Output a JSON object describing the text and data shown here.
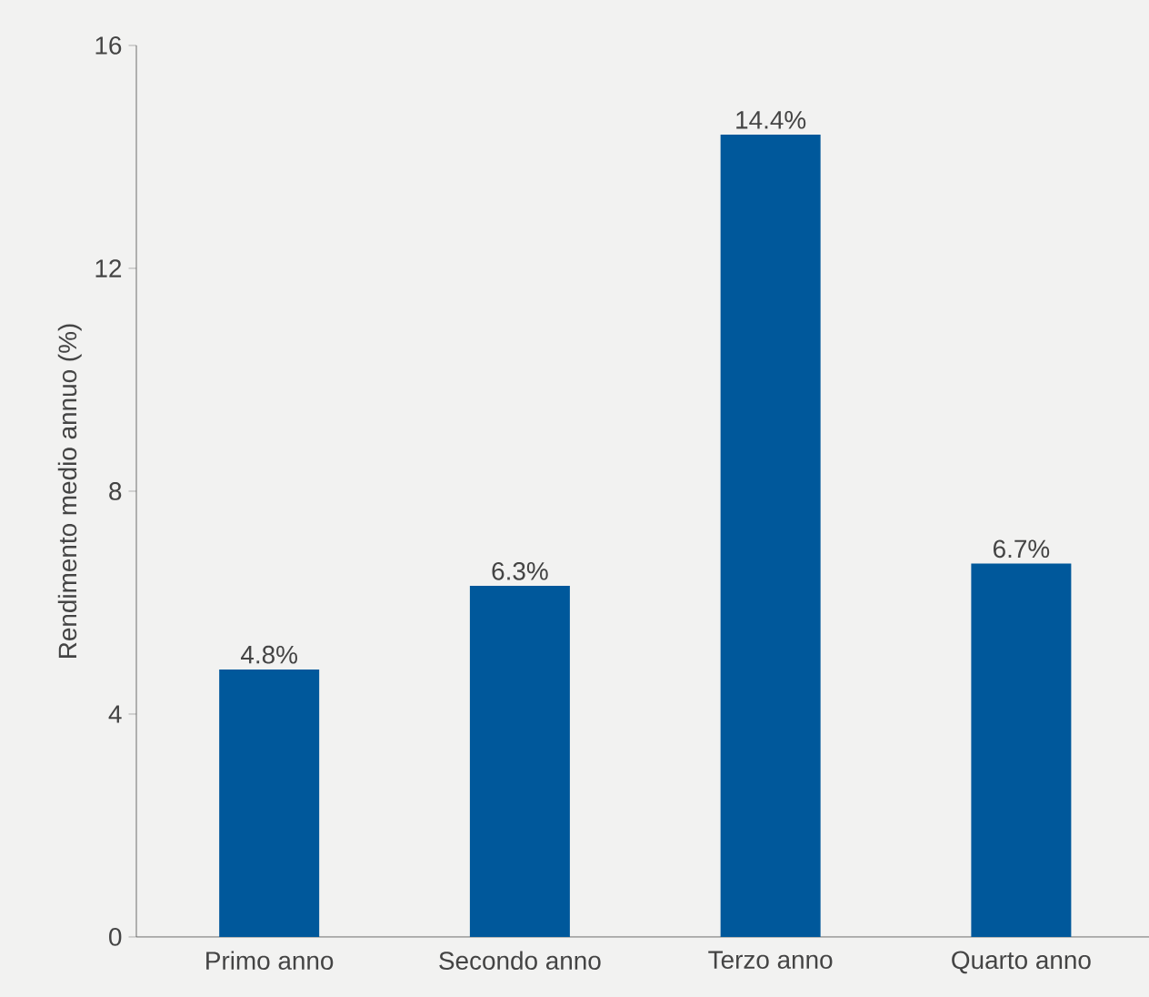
{
  "chart_data": {
    "type": "bar",
    "ylabel": "Rendimento medio annuo (%)",
    "categories": [
      "Primo anno",
      "Secondo anno",
      "Terzo anno",
      "Quarto anno"
    ],
    "values": [
      4.8,
      6.3,
      14.4,
      6.7
    ],
    "value_labels": [
      "4.8%",
      "6.3%",
      "14.4%",
      "6.7%"
    ],
    "color": "#00589b",
    "ylim": [
      0,
      16
    ],
    "yticks": [
      0,
      4,
      8,
      12,
      16
    ]
  }
}
